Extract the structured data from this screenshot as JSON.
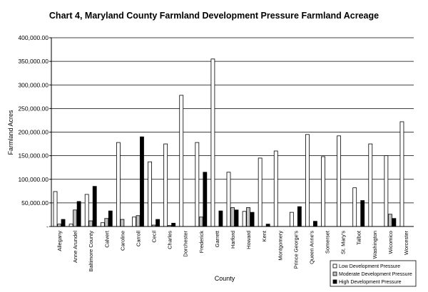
{
  "chart_data": {
    "type": "bar",
    "title": "Chart 4, Maryland County Farmland Development Pressure Farmland Acreage",
    "xlabel": "County",
    "ylabel": "Farmland Acres",
    "ylim": [
      0,
      400000
    ],
    "yticks": [
      0,
      50000,
      100000,
      150000,
      200000,
      250000,
      300000,
      350000,
      400000
    ],
    "ytick_labels": [
      "-",
      "50,000.00",
      "100,000.00",
      "150,000.00",
      "200,000.00",
      "250,000.00",
      "300,000.00",
      "350,000.00",
      "400,000.00"
    ],
    "grid": true,
    "legend_position": "bottom-right",
    "categories": [
      "Allegany",
      "Anne Arundel",
      "Baltimore County",
      "Calvert",
      "Caroline",
      "Carroll",
      "Cecil",
      "Charles",
      "Dorchester",
      "Frederick",
      "Garrett",
      "Harford",
      "Howard",
      "Kent",
      "Montgomery",
      "Prince George's",
      "Queen Anne's",
      "Somerset",
      "St. Mary's",
      "Talbot",
      "Washington",
      "Wicomico",
      "Worcester"
    ],
    "series": [
      {
        "name": "Low Development Pressure",
        "color": "#ffffff",
        "values": [
          74000,
          5000,
          68000,
          8000,
          178000,
          20000,
          137000,
          175000,
          278000,
          178000,
          355000,
          115000,
          32000,
          145000,
          160000,
          30000,
          195000,
          148000,
          192000,
          82000,
          175000,
          150000,
          222000
        ]
      },
      {
        "name": "Moderate Development Pressure",
        "color": "#c0c0c0",
        "values": [
          5000,
          35000,
          12000,
          17000,
          15000,
          23000,
          3000,
          2000,
          0,
          20000,
          0,
          40000,
          40000,
          0,
          0,
          0,
          0,
          0,
          0,
          0,
          0,
          26000,
          0
        ]
      },
      {
        "name": "High Development Pressure",
        "color": "#000000",
        "values": [
          15000,
          53000,
          85000,
          33000,
          0,
          190000,
          15000,
          7000,
          0,
          115000,
          33000,
          35000,
          30000,
          5000,
          0,
          42000,
          11000,
          0,
          0,
          55000,
          0,
          17000,
          0
        ]
      }
    ]
  }
}
